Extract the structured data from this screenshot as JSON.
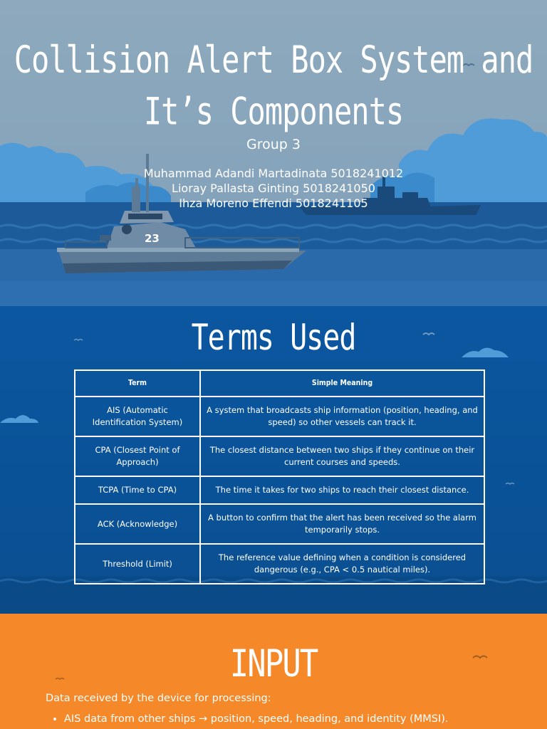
{
  "hero": {
    "title_line1": "Collision Alert Box System and",
    "title_line2": "It’s Components",
    "group": "Group 3",
    "members": [
      "Muhammad Adandi Martadinata 5018241012",
      "Lioray Pallasta Ginting 5018241050",
      "Ihza Moreno Effendi 5018241105"
    ],
    "boat_number": "23"
  },
  "terms": {
    "title": "Terms Used",
    "headers": [
      "Term",
      "Simple Meaning"
    ],
    "rows": [
      {
        "term": "AIS (Automatic Identification System)",
        "meaning": "A system that broadcasts ship information (position, heading, and speed) so other vessels can track it."
      },
      {
        "term": "CPA (Closest Point of Approach)",
        "meaning": "The closest distance between two ships if they continue on their current courses and speeds."
      },
      {
        "term": "TCPA (Time to CPA)",
        "meaning": "The time it takes for two ships to reach their closest distance."
      },
      {
        "term": "ACK (Acknowledge)",
        "meaning": "A button to confirm that the alert has been received so the alarm temporarily stops."
      },
      {
        "term": "Threshold (Limit)",
        "meaning": "The reference value defining when a condition is considered dangerous (e.g., CPA < 0.5 nautical miles)."
      }
    ]
  },
  "input": {
    "title": "INPUT",
    "intro": "Data received by the device for processing:",
    "items": [
      "AIS data from other ships → position, speed, heading, and identity (MMSI)."
    ]
  },
  "colors": {
    "sky": "#8ea9bd",
    "sea": "#0a5296",
    "accent_orange": "#f5892a",
    "cloud": "#4f9cd8"
  }
}
